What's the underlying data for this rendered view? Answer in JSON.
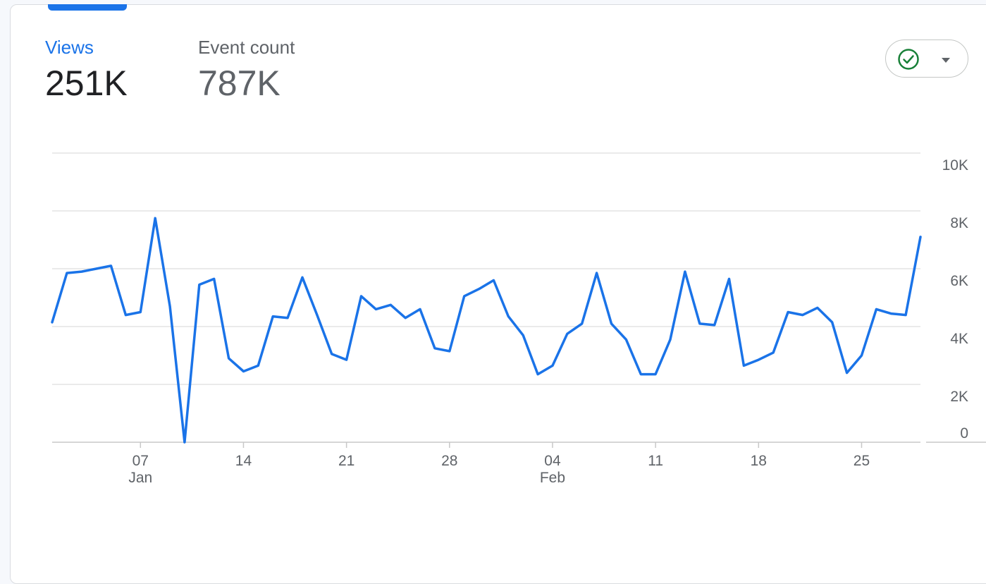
{
  "metrics": {
    "views": {
      "label": "Views",
      "value": "251K"
    },
    "events": {
      "label": "Event count",
      "value": "787K"
    }
  },
  "status": {
    "icon": "check-circle-icon",
    "dropdown_icon": "caret-down-icon",
    "color": "#188038"
  },
  "colors": {
    "accent": "#1a73e8",
    "grid": "#e0e0e0",
    "axis_text": "#5f6368"
  },
  "chart_data": {
    "type": "line",
    "x": [
      "Jan 01",
      "Jan 02",
      "Jan 03",
      "Jan 04",
      "Jan 05",
      "Jan 06",
      "Jan 07",
      "Jan 08",
      "Jan 09",
      "Jan 10",
      "Jan 11",
      "Jan 12",
      "Jan 13",
      "Jan 14",
      "Jan 15",
      "Jan 16",
      "Jan 17",
      "Jan 18",
      "Jan 19",
      "Jan 20",
      "Jan 21",
      "Jan 22",
      "Jan 23",
      "Jan 24",
      "Jan 25",
      "Jan 26",
      "Jan 27",
      "Jan 28",
      "Jan 29",
      "Jan 30",
      "Jan 31",
      "Feb 01",
      "Feb 02",
      "Feb 03",
      "Feb 04",
      "Feb 05",
      "Feb 06",
      "Feb 07",
      "Feb 08",
      "Feb 09",
      "Feb 10",
      "Feb 11",
      "Feb 12",
      "Feb 13",
      "Feb 14",
      "Feb 15",
      "Feb 16",
      "Feb 17",
      "Feb 18",
      "Feb 19",
      "Feb 20",
      "Feb 21",
      "Feb 22",
      "Feb 23",
      "Feb 24",
      "Feb 25",
      "Feb 26",
      "Feb 27",
      "Feb 28",
      "Feb 29"
    ],
    "series": [
      {
        "values": [
          4150,
          5850,
          5900,
          6000,
          6100,
          4400,
          4500,
          7750,
          4700,
          0,
          5450,
          5650,
          2900,
          2450,
          2650,
          4350,
          4300,
          5700,
          4400,
          3050,
          2850,
          5050,
          4600,
          4750,
          4300,
          4600,
          3250,
          3150,
          5050,
          5300,
          5600,
          4350,
          3700,
          2350,
          2650,
          3750,
          4100,
          5850,
          4100,
          3550,
          2350,
          2350,
          3550,
          5900,
          4100,
          4050,
          5650,
          2650,
          2850,
          3100,
          4500,
          4400,
          4650,
          4150,
          2400,
          3000,
          4600,
          4450,
          4400,
          7100
        ]
      }
    ],
    "x_ticks": [
      {
        "day": "07",
        "month": "Jan",
        "index": 6
      },
      {
        "day": "14",
        "month": "",
        "index": 13
      },
      {
        "day": "21",
        "month": "",
        "index": 20
      },
      {
        "day": "28",
        "month": "",
        "index": 27
      },
      {
        "day": "04",
        "month": "Feb",
        "index": 34
      },
      {
        "day": "11",
        "month": "",
        "index": 41
      },
      {
        "day": "18",
        "month": "",
        "index": 48
      },
      {
        "day": "25",
        "month": "",
        "index": 55
      }
    ],
    "y_ticks": [
      {
        "value": 10000,
        "label": "10K"
      },
      {
        "value": 8000,
        "label": "8K"
      },
      {
        "value": 6000,
        "label": "6K"
      },
      {
        "value": 4000,
        "label": "4K"
      },
      {
        "value": 2000,
        "label": "2K"
      },
      {
        "value": 0,
        "label": "0"
      }
    ],
    "ylim": [
      0,
      10000
    ],
    "grid": true,
    "y_axis_position": "right"
  }
}
